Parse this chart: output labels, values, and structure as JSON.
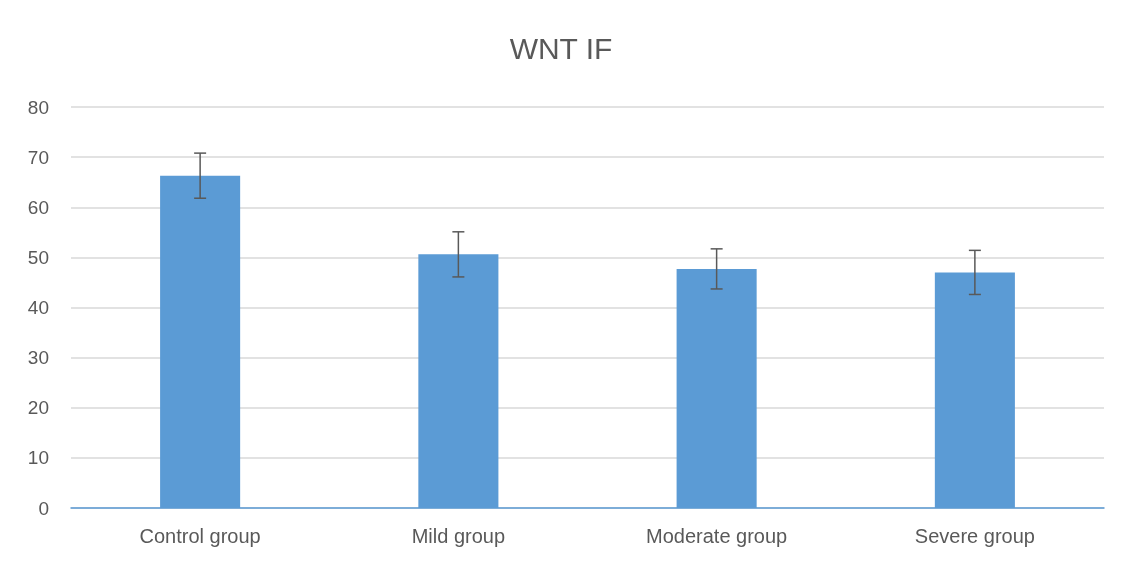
{
  "chart_data": {
    "type": "bar",
    "title": "WNT IF",
    "categories": [
      "Control group",
      "Mild group",
      "Moderate group",
      "Severe group"
    ],
    "values": [
      66.3,
      50.6,
      47.7,
      47.0
    ],
    "errors": [
      4.5,
      4.5,
      4.0,
      4.4
    ],
    "color": "#5b9bd5",
    "ylim": [
      0,
      80
    ],
    "yticks": [
      0,
      10,
      20,
      30,
      40,
      50,
      60,
      70,
      80
    ],
    "grid": "y"
  }
}
